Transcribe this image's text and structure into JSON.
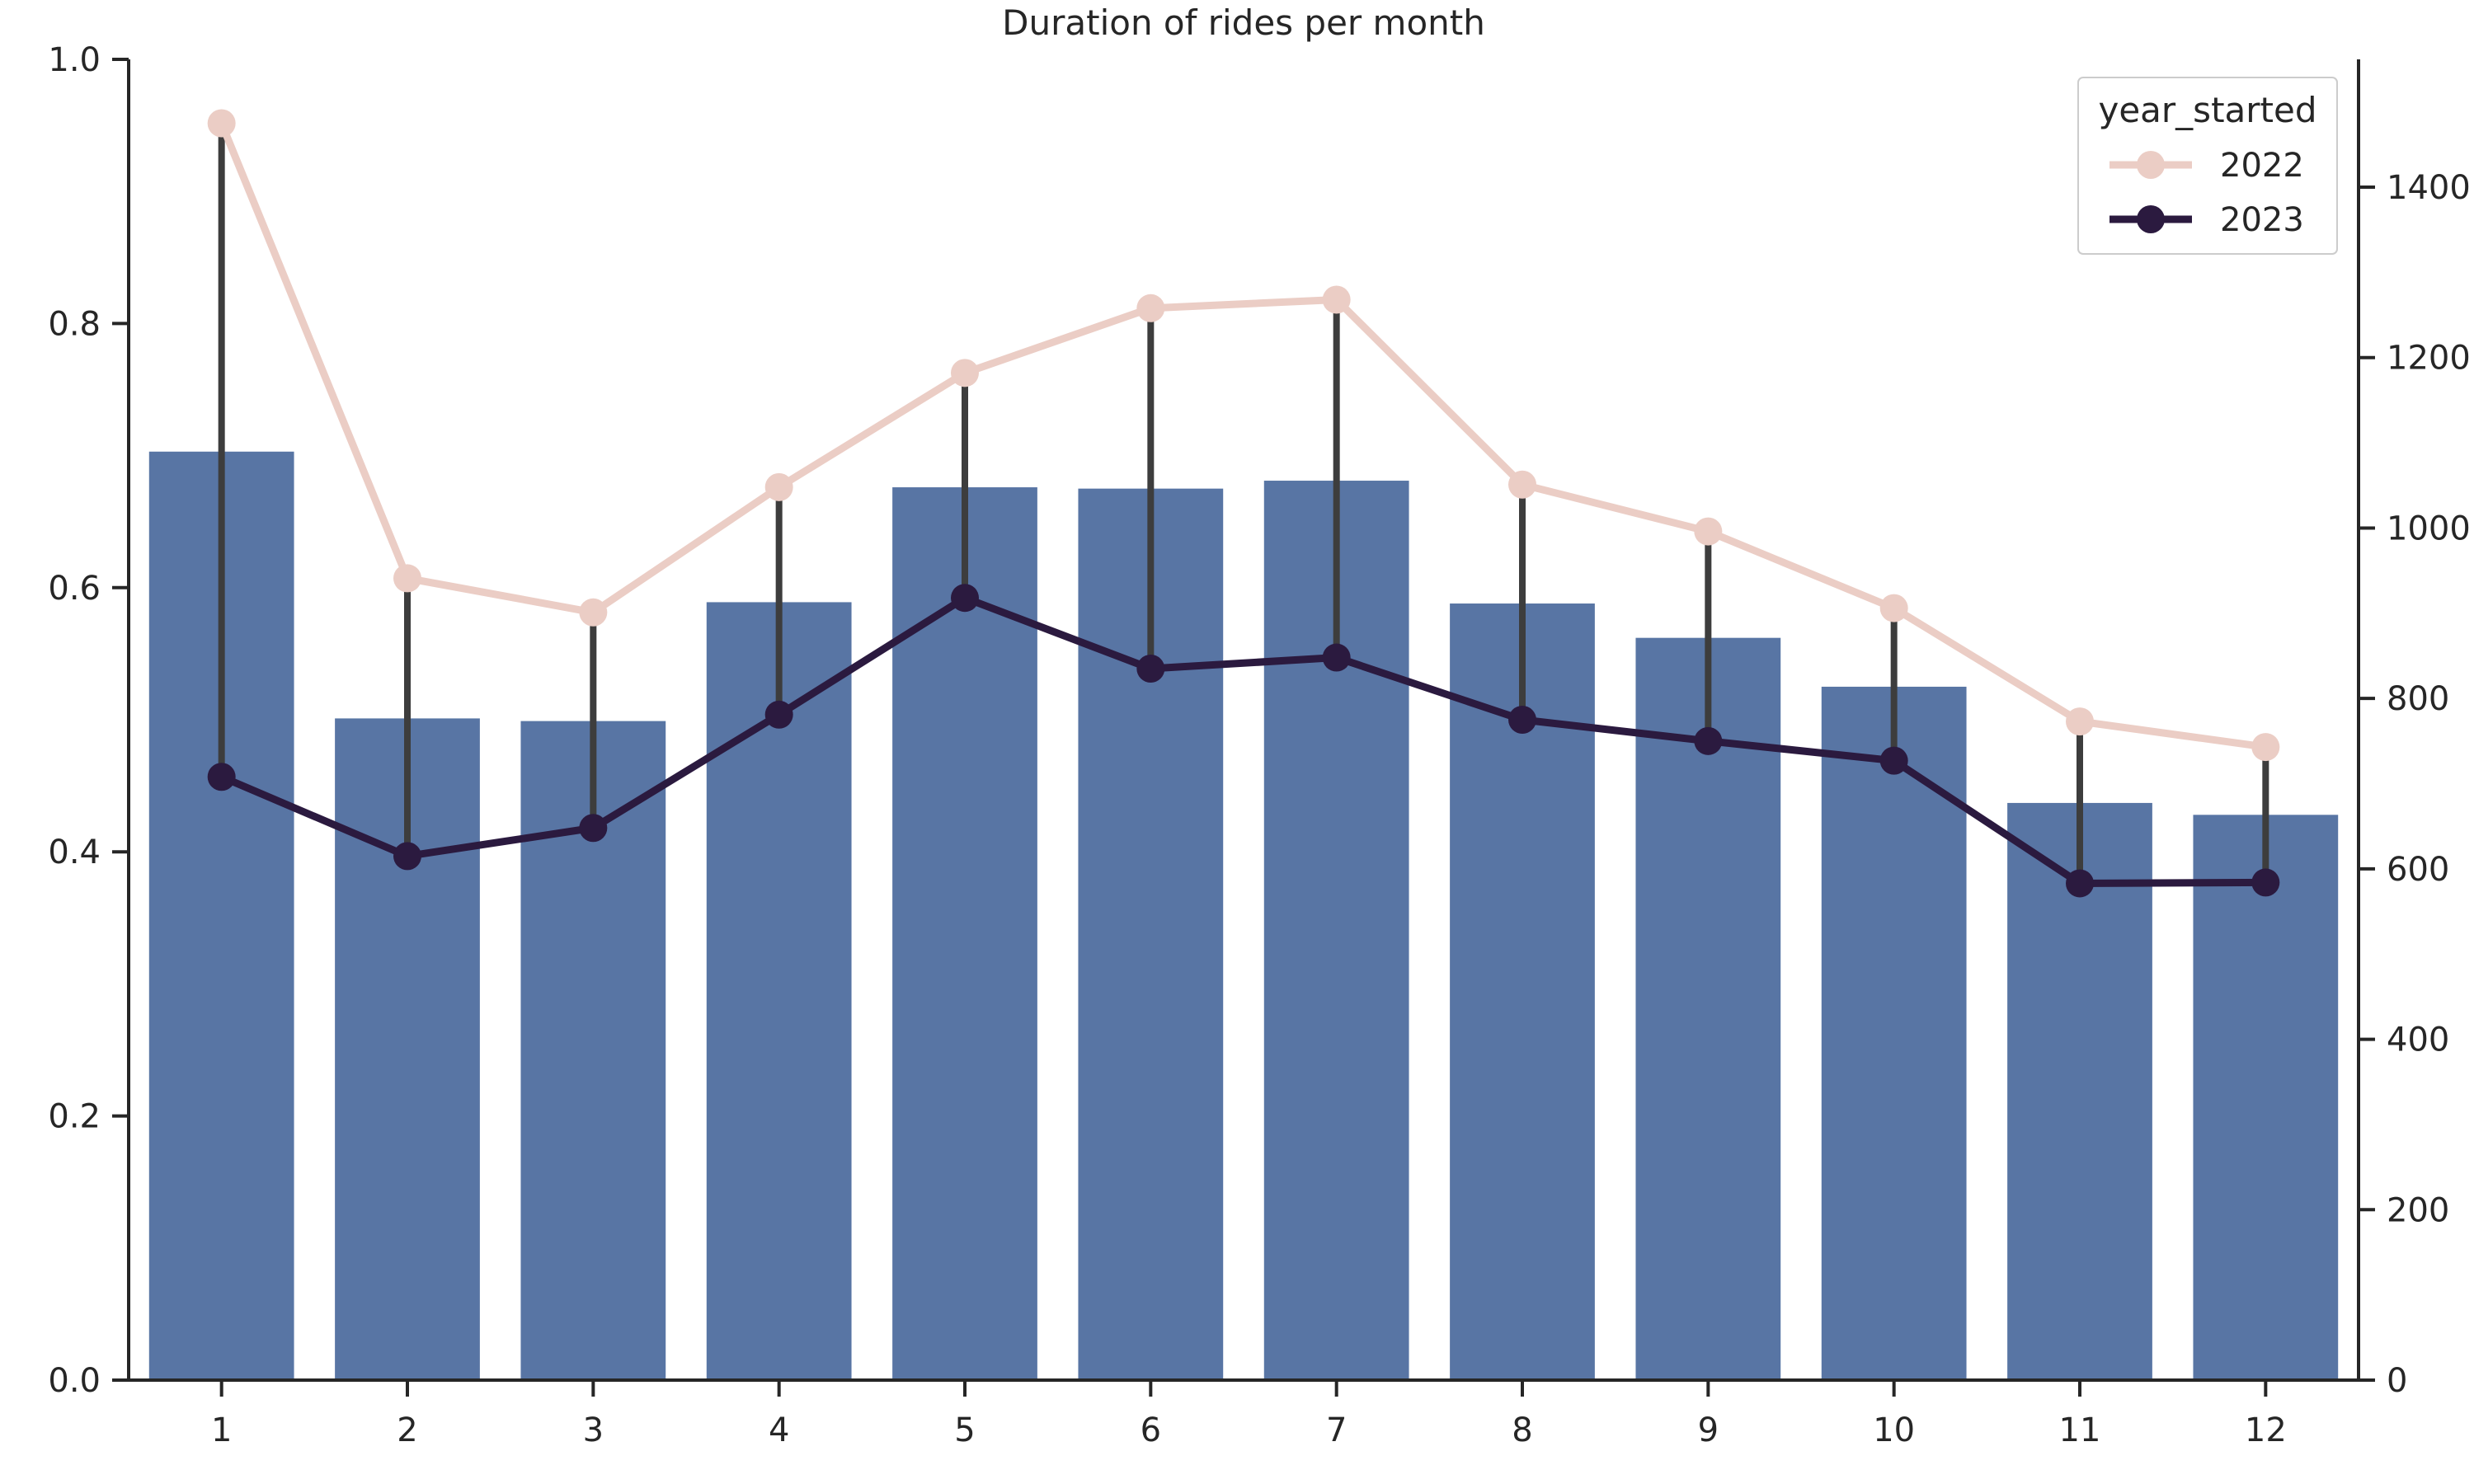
{
  "chart_data": {
    "type": "bar",
    "title": "Duration of rides per month",
    "xlabel": "",
    "ylabel": "",
    "categories": [
      "1",
      "2",
      "3",
      "4",
      "5",
      "6",
      "7",
      "8",
      "9",
      "10",
      "11",
      "12"
    ],
    "bars": {
      "values": [
        0.703,
        0.501,
        0.499,
        0.589,
        0.676,
        0.675,
        0.681,
        0.588,
        0.562,
        0.525,
        0.437,
        0.428
      ],
      "color": "#5875a4"
    },
    "ylim_left": [
      0,
      1.0
    ],
    "yticks_left": [
      "0.0",
      "0.2",
      "0.4",
      "0.6",
      "0.8",
      "1.0"
    ],
    "ylim_right": [
      0,
      1550
    ],
    "yticks_right": [
      "0",
      "200",
      "400",
      "600",
      "800",
      "1000",
      "1200",
      "1400"
    ],
    "series": [
      {
        "name": "2022",
        "color": "#ebcdc5",
        "values": [
          1475,
          941,
          901,
          1048,
          1182,
          1258,
          1268,
          1051,
          996,
          906,
          773,
          743
        ]
      },
      {
        "name": "2023",
        "color": "#2b1a3f",
        "values": [
          708,
          615,
          648,
          781,
          918,
          835,
          848,
          775,
          750,
          727,
          583,
          584
        ]
      }
    ],
    "legend": {
      "title": "year_started",
      "placement": "top-right"
    },
    "grid": false
  }
}
